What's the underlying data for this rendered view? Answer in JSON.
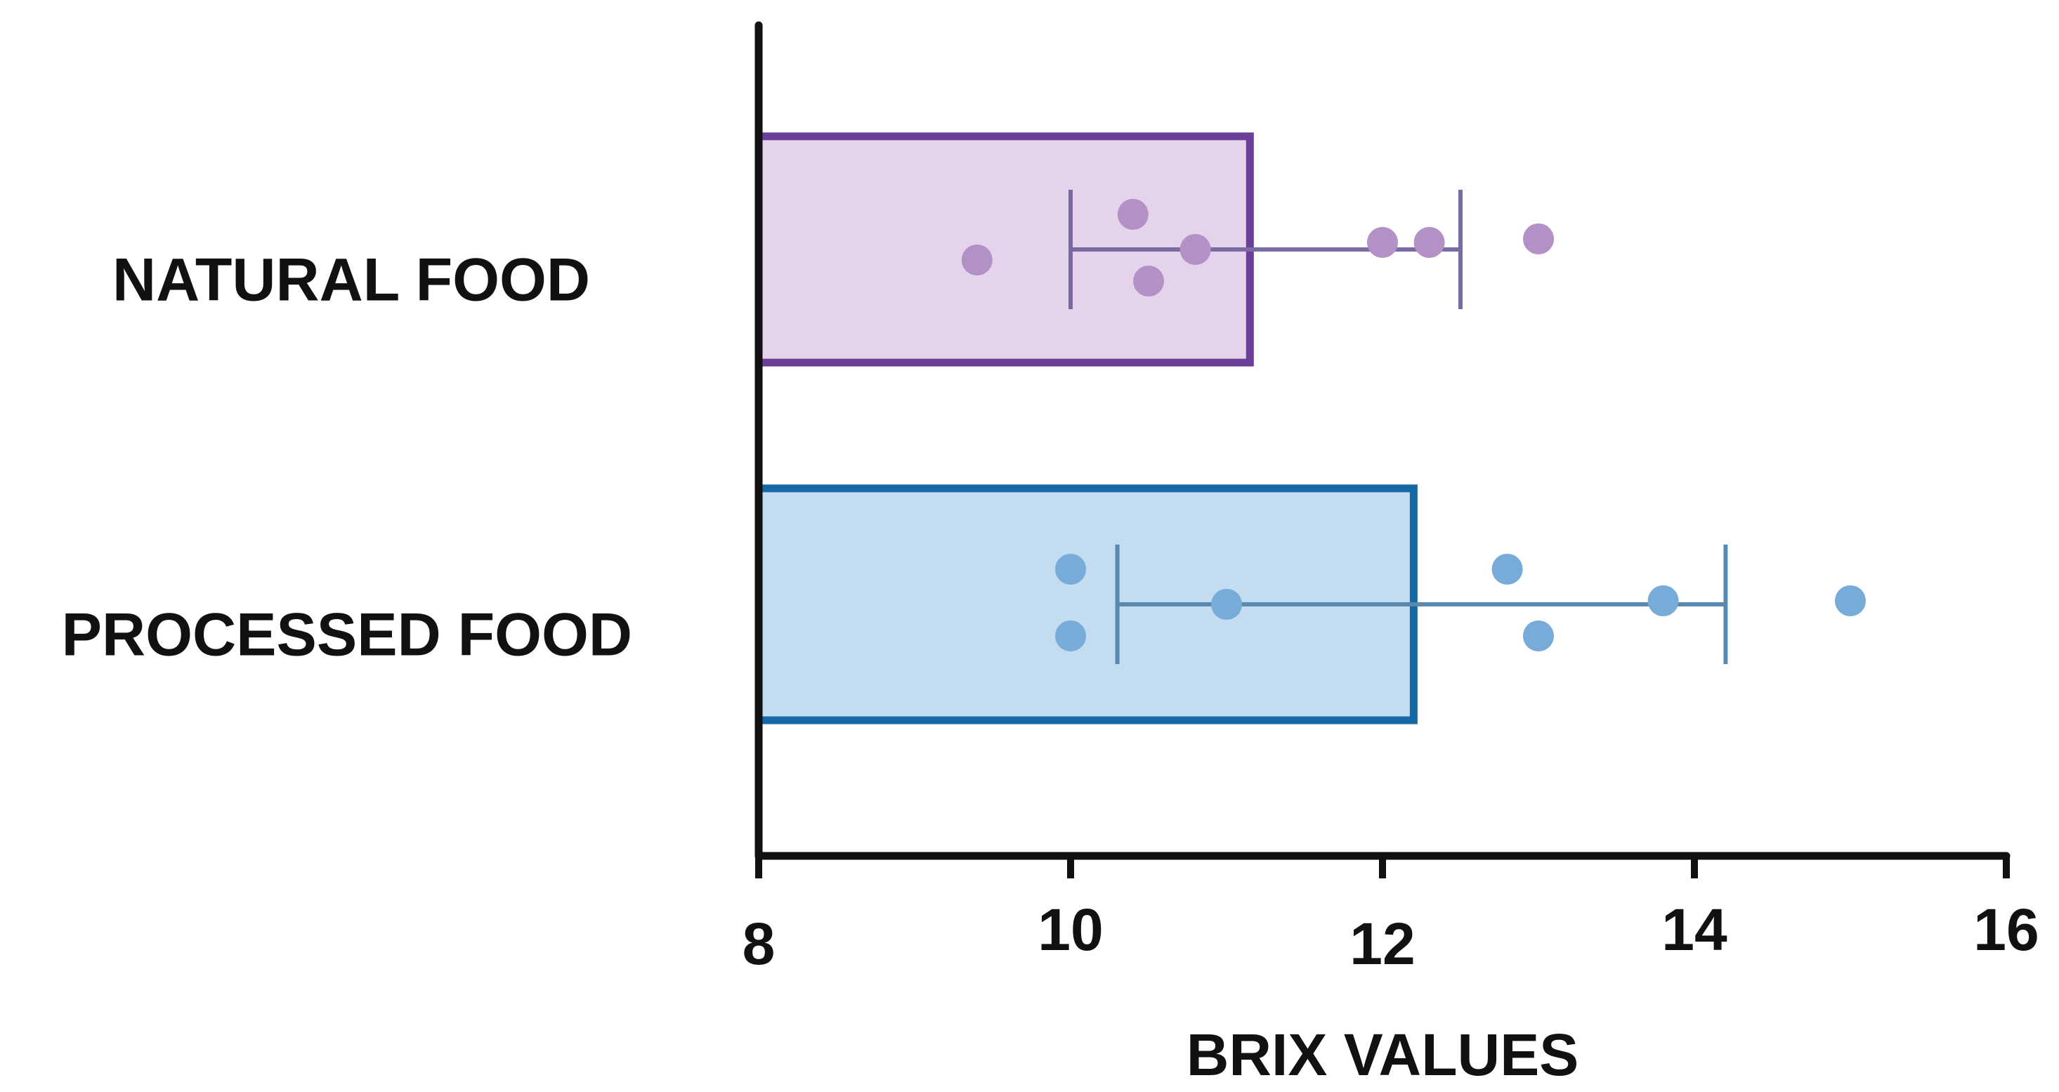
{
  "chart_data": {
    "type": "bar",
    "orientation": "horizontal",
    "xlabel": "BRIX VALUES",
    "ylabel": "",
    "xlim": [
      8,
      16
    ],
    "x_ticks": [
      "8",
      "10",
      "12",
      "14",
      "16"
    ],
    "grid": false,
    "legend": "none",
    "series": [
      {
        "name": "NATURAL FOOD",
        "label": "NATURAL FOOD",
        "mean": 11.15,
        "sd_low": 10.0,
        "sd_high": 12.5,
        "points": [
          9.4,
          10.4,
          10.5,
          10.8,
          12.0,
          12.3,
          13.0
        ],
        "fill": "#e4d3ea",
        "stroke": "#6b3f98",
        "point_color": "#b391c7",
        "error_color": "#7a6aa3"
      },
      {
        "name": "PROCESSED FOOD",
        "label": "PROCESSED FOOD",
        "mean": 12.2,
        "sd_low": 10.3,
        "sd_high": 14.2,
        "points": [
          10.0,
          10.0,
          11.0,
          12.8,
          13.0,
          13.8,
          15.0
        ],
        "fill": "#c3dcef",
        "stroke": "#1569a7",
        "point_color": "#77abd8",
        "error_color": "#5a89b0"
      }
    ]
  }
}
